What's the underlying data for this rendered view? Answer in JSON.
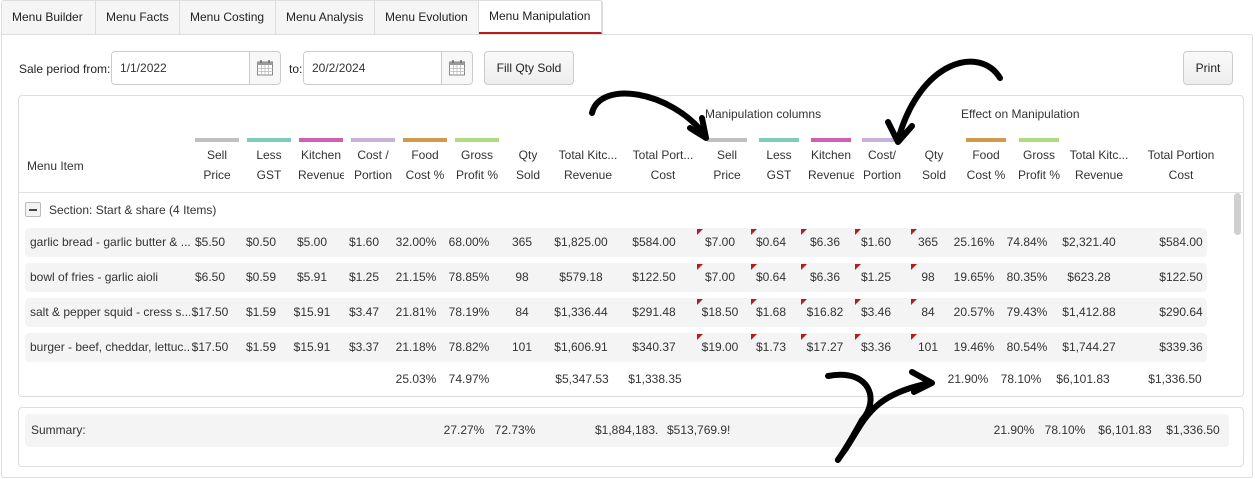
{
  "tabs": [
    {
      "label": "Menu Builder",
      "active": false
    },
    {
      "label": "Menu Facts",
      "active": false
    },
    {
      "label": "Menu Costing",
      "active": false
    },
    {
      "label": "Menu Analysis",
      "active": false
    },
    {
      "label": "Menu Evolution",
      "active": false
    },
    {
      "label": "Menu Manipulation",
      "active": true
    }
  ],
  "toolbar": {
    "sale_period_label": "Sale period from:",
    "from_date": "1/1/2022",
    "to_label": "to:",
    "to_date": "20/2/2024",
    "fill_qty_button": "Fill Qty Sold",
    "print_button": "Print"
  },
  "groups": {
    "manipulation": "Manipulation columns",
    "effect": "Effect on Manipulation"
  },
  "colors": {
    "sell_price": "#c0c0c0",
    "less_gst": "#7fcbbd",
    "kitchen_revenue": "#d35fb3",
    "cost_portion": "#c8b0d8",
    "food_cost": "#d09a4a",
    "gross_profit": "#aedc80",
    "flag": "#b71c1c",
    "active_tab": "#b71c1c"
  },
  "columns": {
    "menu_item": "Menu Item",
    "orig": [
      {
        "l1": "Sell",
        "l2": "Price"
      },
      {
        "l1": "Less",
        "l2": "GST"
      },
      {
        "l1": "Kitchen",
        "l2": "Revenue"
      },
      {
        "l1": "Cost /",
        "l2": "Portion"
      },
      {
        "l1": "Food",
        "l2": "Cost %"
      },
      {
        "l1": "Gross",
        "l2": "Profit %"
      },
      {
        "l1": "Qty",
        "l2": "Sold"
      },
      {
        "l1": "Total Kitc...",
        "l2": "Revenue"
      },
      {
        "l1": "Total Port...",
        "l2": "Cost"
      }
    ],
    "manip": [
      {
        "l1": "Sell",
        "l2": "Price"
      },
      {
        "l1": "Less",
        "l2": "GST"
      },
      {
        "l1": "Kitchen",
        "l2": "Revenue"
      },
      {
        "l1": "Cost/",
        "l2": "Portion"
      },
      {
        "l1": "Qty",
        "l2": "Sold"
      },
      {
        "l1": "Food",
        "l2": "Cost %"
      },
      {
        "l1": "Gross",
        "l2": "Profit %"
      },
      {
        "l1": "Total Kitc...",
        "l2": "Revenue"
      },
      {
        "l1": "Total Portion",
        "l2": "Cost"
      }
    ]
  },
  "section": {
    "label": "Section: Start & share (4 Items)"
  },
  "rows": [
    {
      "name": "garlic bread - garlic butter & ...",
      "c": [
        "$5.50",
        "$0.50",
        "$5.00",
        "$1.60",
        "32.00%",
        "68.00%",
        "365",
        "$1,825.00",
        "$584.00",
        "$7.00",
        "$0.64",
        "$6.36",
        "$1.60",
        "365",
        "25.16%",
        "74.84%",
        "$2,321.40",
        "$584.00"
      ]
    },
    {
      "name": "bowl of fries - garlic aioli",
      "c": [
        "$6.50",
        "$0.59",
        "$5.91",
        "$1.25",
        "21.15%",
        "78.85%",
        "98",
        "$579.18",
        "$122.50",
        "$7.00",
        "$0.64",
        "$6.36",
        "$1.25",
        "98",
        "19.65%",
        "80.35%",
        "$623.28",
        "$122.50"
      ]
    },
    {
      "name": "salt & pepper squid - cress s...",
      "c": [
        "$17.50",
        "$1.59",
        "$15.91",
        "$3.47",
        "21.81%",
        "78.19%",
        "84",
        "$1,336.44",
        "$291.48",
        "$18.50",
        "$1.68",
        "$16.82",
        "$3.46",
        "84",
        "20.57%",
        "79.43%",
        "$1,412.88",
        "$290.64"
      ]
    },
    {
      "name": "burger - beef, cheddar, lettuc...",
      "c": [
        "$17.50",
        "$1.59",
        "$15.91",
        "$3.37",
        "21.18%",
        "78.82%",
        "101",
        "$1,606.91",
        "$340.37",
        "$19.00",
        "$1.73",
        "$17.27",
        "$3.36",
        "101",
        "19.46%",
        "80.54%",
        "$1,744.27",
        "$339.36"
      ]
    }
  ],
  "section_totals": {
    "food_cost": "25.03%",
    "gross_profit": "74.97%",
    "total_kitchen_revenue": "$5,347.53",
    "total_portion_cost": "$1,338.35",
    "m_food_cost": "21.90%",
    "m_gross_profit": "78.10%",
    "m_total_kitchen_revenue": "$6,101.83",
    "m_total_portion_cost": "$1,336.50"
  },
  "summary": {
    "label": "Summary:",
    "food_cost": "27.27%",
    "gross_profit": "72.73%",
    "total_kitchen_revenue": "$1,884,183.",
    "total_portion_cost": "$513,769.9!",
    "m_food_cost": "21.90%",
    "m_gross_profit": "78.10%",
    "m_total_kitchen_revenue": "$6,101.83",
    "m_total_portion_cost": "$1,336.50"
  }
}
